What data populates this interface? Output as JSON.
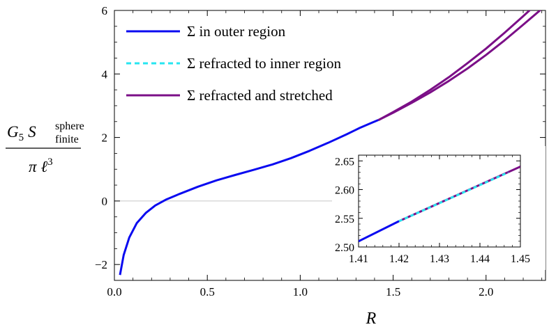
{
  "chart_data": {
    "type": "line",
    "xlabel": "R",
    "ylabel": {
      "G": "G",
      "sub5": "5",
      "S": "S",
      "sup": "sphere",
      "sub": "finite",
      "pi": "π",
      "ell": "ℓ",
      "exp": "3"
    },
    "xlim": [
      0,
      2.32
    ],
    "ylim": [
      -2.5,
      6
    ],
    "xticks": [
      "0.0",
      "0.5",
      "1.0",
      "1.5",
      "2.0"
    ],
    "xtick_values": [
      0,
      0.5,
      1.0,
      1.5,
      2.0
    ],
    "yticks": [
      "−2",
      "0",
      "2",
      "4",
      "6"
    ],
    "ytick_values": [
      -2,
      0,
      2,
      4,
      6
    ],
    "zero_line": true,
    "legend_position": "top-left",
    "series": [
      {
        "name": "Σ in outer region",
        "color": "#0a0af0",
        "style": "solid",
        "x": [
          0.03,
          0.05,
          0.08,
          0.12,
          0.17,
          0.22,
          0.28,
          0.35,
          0.45,
          0.55,
          0.65,
          0.75,
          0.85,
          0.95,
          1.05,
          1.15,
          1.25,
          1.32,
          1.38,
          1.42
        ],
        "y": [
          -2.33,
          -1.7,
          -1.15,
          -0.7,
          -0.37,
          -0.14,
          0.05,
          0.22,
          0.45,
          0.65,
          0.82,
          0.98,
          1.15,
          1.35,
          1.58,
          1.83,
          2.1,
          2.3,
          2.45,
          2.55
        ]
      },
      {
        "name": "Σ refracted to inner region",
        "color": "#27e6f0",
        "style": "dashed",
        "x": [
          1.42,
          1.43,
          1.445
        ],
        "y": [
          2.545,
          2.575,
          2.625
        ]
      },
      {
        "name": "Σ refracted and stretched",
        "color": "#7b0f87",
        "style": "solid",
        "branches": [
          {
            "x": [
              1.42,
              1.5,
              1.6,
              1.7,
              1.8,
              1.9,
              2.0,
              2.1,
              2.2,
              2.3
            ],
            "y": [
              2.545,
              2.8,
              3.13,
              3.5,
              3.9,
              4.34,
              4.8,
              5.3,
              5.82,
              6.35
            ]
          },
          {
            "x": [
              1.42,
              1.5,
              1.6,
              1.7,
              1.8,
              1.9,
              2.0,
              2.1,
              2.2,
              2.3
            ],
            "y": [
              2.545,
              2.78,
              3.09,
              3.42,
              3.78,
              4.17,
              4.6,
              5.06,
              5.55,
              6.05
            ]
          }
        ]
      }
    ],
    "inset": {
      "xlim": [
        1.41,
        1.45
      ],
      "ylim": [
        2.5,
        2.66
      ],
      "xticks": [
        "1.41",
        "1.42",
        "1.43",
        "1.44",
        "1.45"
      ],
      "xtick_values": [
        1.41,
        1.42,
        1.43,
        1.44,
        1.45
      ],
      "yticks": [
        "2.50",
        "2.55",
        "2.60",
        "2.65"
      ],
      "ytick_values": [
        2.5,
        2.55,
        2.6,
        2.65
      ],
      "series": [
        {
          "name": "Σ in outer region",
          "color": "#0a0af0",
          "style": "solid",
          "x": [
            1.41,
            1.42
          ],
          "y": [
            2.51,
            2.545
          ]
        },
        {
          "name": "Σ refracted and stretched",
          "color": "#7b0f87",
          "style": "solid",
          "x": [
            1.42,
            1.45
          ],
          "y": [
            2.545,
            2.64
          ]
        },
        {
          "name": "Σ refracted to inner region",
          "color": "#27e6f0",
          "style": "dashed",
          "x": [
            1.42,
            1.447
          ],
          "y": [
            2.545,
            2.63
          ]
        }
      ]
    }
  }
}
